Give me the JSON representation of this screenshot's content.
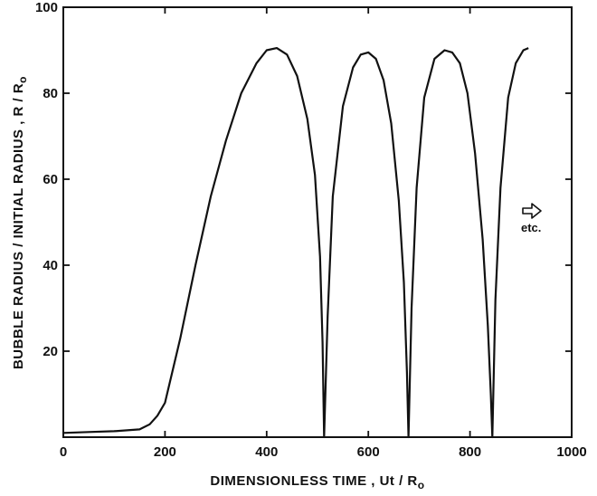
{
  "chart_data": {
    "type": "line",
    "xlabel": "DIMENSIONLESS   TIME ,   Ut / R",
    "xlabel_sub": "o",
    "ylabel": "BUBBLE  RADIUS  /  INITIAL  RADIUS ,   R / R",
    "ylabel_sub": "o",
    "xlim": [
      0,
      1000
    ],
    "ylim": [
      0,
      100
    ],
    "xticks": [
      0,
      200,
      400,
      600,
      800,
      1000
    ],
    "yticks": [
      20,
      40,
      60,
      80,
      100
    ],
    "x_ticklabels": [
      "0",
      "200",
      "400",
      "600",
      "800",
      "1000"
    ],
    "y_ticklabels": [
      "20",
      "40",
      "60",
      "80",
      "100"
    ],
    "grid": false,
    "annotation": {
      "text": "etc.",
      "icon": "right-arrow-icon",
      "x": 1040,
      "y": 46
    },
    "series": [
      {
        "x": [
          0,
          50,
          100,
          150,
          170,
          185,
          200,
          230,
          260,
          290,
          320,
          350,
          380,
          400,
          420,
          440,
          460,
          480,
          495,
          505,
          510,
          513,
          520,
          530,
          550,
          570,
          585,
          600,
          615,
          630,
          645,
          660,
          670,
          676,
          679,
          685,
          695,
          710,
          730,
          750,
          765,
          780,
          795,
          810,
          825,
          835,
          841,
          844,
          850,
          860,
          875,
          890,
          905,
          915
        ],
        "y": [
          1,
          1.2,
          1.4,
          1.8,
          3,
          5,
          8,
          23,
          40,
          56,
          69,
          80,
          87,
          90,
          90.5,
          89,
          84,
          74,
          61,
          42,
          22,
          0,
          28,
          56,
          77,
          86,
          89,
          89.5,
          88,
          83,
          73,
          55,
          36,
          15,
          0,
          30,
          58,
          79,
          88,
          90,
          89.5,
          87,
          80,
          66,
          46,
          26,
          10,
          0,
          32,
          58,
          79,
          87,
          90,
          90.5
        ]
      }
    ]
  }
}
